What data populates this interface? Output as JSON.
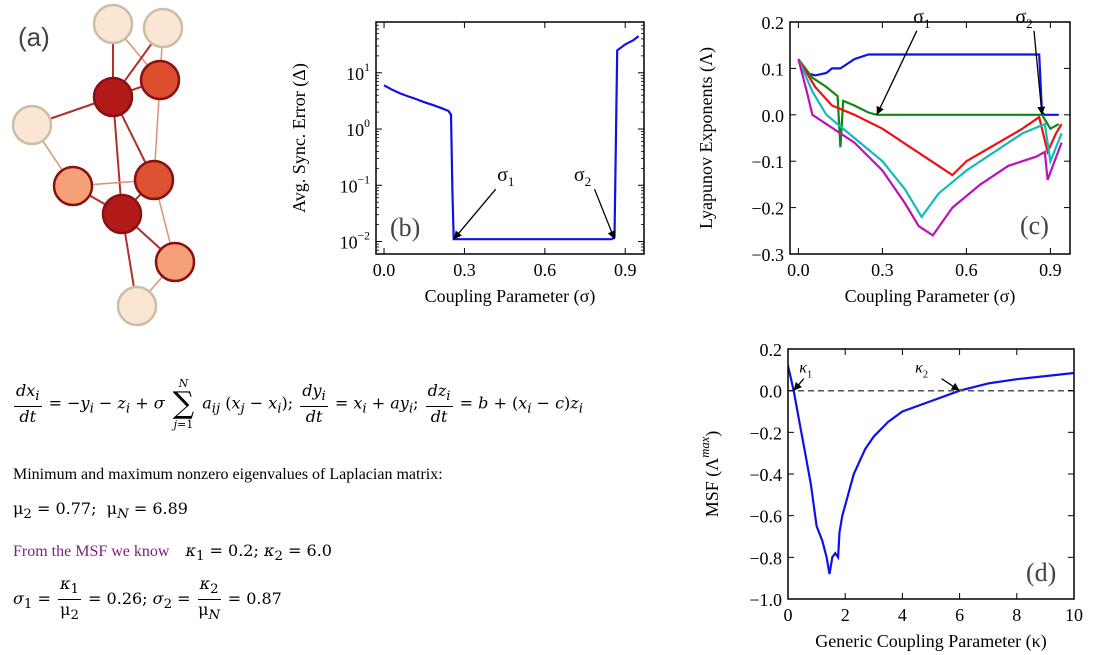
{
  "panel_a": {
    "label": "(a)",
    "nodes": [
      {
        "id": 1,
        "color": "#fbe6d4"
      },
      {
        "id": 2,
        "color": "#fbe6d4"
      },
      {
        "id": 3,
        "color": "#b21a1a"
      },
      {
        "id": 4,
        "color": "#dd4e2e"
      },
      {
        "id": 5,
        "color": "#fbe6d4"
      },
      {
        "id": 6,
        "color": "#f6a07a"
      },
      {
        "id": 7,
        "color": "#dd5232"
      },
      {
        "id": 8,
        "color": "#b21a1a"
      },
      {
        "id": 9,
        "color": "#f6a07a"
      },
      {
        "id": 10,
        "color": "#fbe6d4"
      }
    ],
    "edges": [
      [
        1,
        3
      ],
      [
        1,
        4
      ],
      [
        2,
        4
      ],
      [
        2,
        3
      ],
      [
        3,
        4
      ],
      [
        3,
        5
      ],
      [
        3,
        7
      ],
      [
        3,
        8
      ],
      [
        4,
        7
      ],
      [
        5,
        6
      ],
      [
        6,
        8
      ],
      [
        6,
        7
      ],
      [
        7,
        8
      ],
      [
        8,
        9
      ],
      [
        7,
        9
      ],
      [
        8,
        10
      ],
      [
        9,
        10
      ]
    ]
  },
  "chart_data": [
    {
      "id": "b",
      "type": "line",
      "panel_label": "(b)",
      "xlabel": "Coupling Parameter (σ)",
      "ylabel": "Avg. Sync. Error (Δ)",
      "yscale": "log",
      "xlim": [
        -0.03,
        0.97
      ],
      "ylim": [
        0.006,
        80
      ],
      "xticks": [
        "0.0",
        "0.3",
        "0.6",
        "0.9"
      ],
      "xtick_values": [
        0.0,
        0.3,
        0.6,
        0.9
      ],
      "yticks": [
        "10^-2",
        "10^-1",
        "10^0",
        "10^1"
      ],
      "ytick_values": [
        0.01,
        0.1,
        1,
        10
      ],
      "series": [
        {
          "color": "#1010e8",
          "x": [
            0.0,
            0.03,
            0.06,
            0.09,
            0.12,
            0.15,
            0.18,
            0.21,
            0.24,
            0.25,
            0.255,
            0.26,
            0.3,
            0.5,
            0.7,
            0.84,
            0.85,
            0.86,
            0.87,
            0.9,
            0.93,
            0.95
          ],
          "y": [
            6.0,
            5.0,
            4.3,
            3.8,
            3.4,
            3.0,
            2.7,
            2.4,
            2.1,
            1.8,
            0.08,
            0.011,
            0.011,
            0.011,
            0.011,
            0.011,
            0.011,
            0.012,
            25,
            32,
            38,
            45
          ]
        }
      ],
      "annotations": [
        {
          "text": "σ1",
          "x": 0.26,
          "y": 0.011
        },
        {
          "text": "σ2",
          "x": 0.86,
          "y": 0.011
        }
      ]
    },
    {
      "id": "c",
      "type": "line",
      "panel_label": "(c)",
      "xlabel": "Coupling Parameter (σ)",
      "ylabel": "Lyapunov Exponents (Λ)",
      "xlim": [
        -0.03,
        0.97
      ],
      "ylim": [
        -0.3,
        0.2
      ],
      "xticks": [
        "0.0",
        "0.3",
        "0.6",
        "0.9"
      ],
      "xtick_values": [
        0.0,
        0.3,
        0.6,
        0.9
      ],
      "yticks": [
        "0.2",
        "0.1",
        "0.0",
        "−0.1",
        "−0.2",
        "−0.3"
      ],
      "ytick_values": [
        0.2,
        0.1,
        0.0,
        -0.1,
        -0.2,
        -0.3
      ],
      "series": [
        {
          "color": "#1010e8",
          "x": [
            0.0,
            0.03,
            0.06,
            0.1,
            0.12,
            0.15,
            0.2,
            0.25,
            0.28,
            0.35,
            0.5,
            0.7,
            0.86,
            0.87,
            0.88,
            0.93
          ],
          "y": [
            0.12,
            0.09,
            0.085,
            0.09,
            0.1,
            0.1,
            0.12,
            0.13,
            0.13,
            0.13,
            0.13,
            0.13,
            0.13,
            0.005,
            0.0,
            0.0
          ]
        },
        {
          "color": "#118811",
          "x": [
            0.0,
            0.05,
            0.1,
            0.14,
            0.15,
            0.16,
            0.2,
            0.25,
            0.28,
            0.5,
            0.87,
            0.9,
            0.93
          ],
          "y": [
            0.12,
            0.08,
            0.06,
            0.04,
            -0.07,
            0.03,
            0.02,
            0.005,
            0.0,
            0.0,
            0.0,
            -0.03,
            -0.02
          ]
        },
        {
          "color": "#ee1111",
          "x": [
            0.0,
            0.06,
            0.12,
            0.2,
            0.3,
            0.4,
            0.5,
            0.55,
            0.6,
            0.7,
            0.8,
            0.86,
            0.89,
            0.92,
            0.94
          ],
          "y": [
            0.12,
            0.06,
            0.02,
            0.0,
            -0.03,
            -0.07,
            -0.11,
            -0.13,
            -0.1,
            -0.065,
            -0.03,
            -0.005,
            -0.08,
            -0.04,
            -0.02
          ]
        },
        {
          "color": "#11bbbb",
          "x": [
            0.0,
            0.05,
            0.1,
            0.2,
            0.3,
            0.38,
            0.44,
            0.5,
            0.6,
            0.7,
            0.8,
            0.88,
            0.9,
            0.94
          ],
          "y": [
            0.12,
            0.05,
            0.0,
            -0.05,
            -0.1,
            -0.16,
            -0.22,
            -0.17,
            -0.12,
            -0.08,
            -0.04,
            -0.02,
            -0.1,
            -0.04
          ]
        },
        {
          "color": "#bb11bb",
          "x": [
            0.0,
            0.03,
            0.05,
            0.1,
            0.2,
            0.3,
            0.38,
            0.43,
            0.48,
            0.55,
            0.65,
            0.75,
            0.85,
            0.88,
            0.89,
            0.94
          ],
          "y": [
            0.12,
            0.05,
            0.0,
            -0.02,
            -0.06,
            -0.12,
            -0.19,
            -0.24,
            -0.26,
            -0.2,
            -0.15,
            -0.11,
            -0.09,
            -0.08,
            -0.14,
            -0.06
          ]
        }
      ],
      "annotations": [
        {
          "text": "σ1",
          "x": 0.28,
          "y": 0.0
        },
        {
          "text": "σ2",
          "x": 0.87,
          "y": 0.0
        }
      ]
    },
    {
      "id": "d",
      "type": "line",
      "panel_label": "(d)",
      "xlabel": "Generic Coupling Parameter (κ)",
      "ylabel": "MSF (Λ^max)",
      "xlim": [
        0,
        10
      ],
      "ylim": [
        -1.0,
        0.2
      ],
      "xticks": [
        "0",
        "2",
        "4",
        "6",
        "8",
        "10"
      ],
      "xtick_values": [
        0,
        2,
        4,
        6,
        8,
        10
      ],
      "yticks": [
        "0.2",
        "0.0",
        "−0.2",
        "−0.4",
        "−0.6",
        "−0.8",
        "−1.0"
      ],
      "ytick_values": [
        0.2,
        0.0,
        -0.2,
        -0.4,
        -0.6,
        -0.8,
        -1.0
      ],
      "series": [
        {
          "color": "#1010e8",
          "x": [
            0.0,
            0.2,
            0.4,
            0.6,
            0.8,
            1.0,
            1.2,
            1.35,
            1.45,
            1.5,
            1.55,
            1.65,
            1.75,
            1.8,
            1.9,
            2.0,
            2.3,
            2.7,
            3.0,
            3.5,
            4.0,
            5.0,
            6.0,
            7.0,
            8.0,
            9.0,
            10.0
          ],
          "y": [
            0.12,
            0.0,
            -0.15,
            -0.3,
            -0.45,
            -0.65,
            -0.72,
            -0.8,
            -0.88,
            -0.84,
            -0.8,
            -0.78,
            -0.8,
            -0.68,
            -0.6,
            -0.55,
            -0.4,
            -0.28,
            -0.22,
            -0.15,
            -0.1,
            -0.05,
            0.0,
            0.035,
            0.055,
            0.07,
            0.085
          ]
        },
        {
          "color": "#555555",
          "style": "dashed",
          "x": [
            0,
            10
          ],
          "y": [
            0,
            0
          ]
        }
      ],
      "annotations": [
        {
          "text": "κ1",
          "x": 0.2,
          "y": 0.0
        },
        {
          "text": "κ2",
          "x": 6.0,
          "y": 0.0
        }
      ]
    }
  ],
  "text": {
    "eigen_line": "Minimum and maximum nonzero eigenvalues of  Laplacian matrix:",
    "mu2": "0.77",
    "muN": "6.89",
    "msf_label": "From the MSF we know",
    "kappa1": "0.2",
    "kappa2": "6.0",
    "sigma1": "0.26",
    "sigma2": "0.87"
  },
  "colors": {
    "line_blue": "#1010e8",
    "purple_text": "#7a1f7a"
  }
}
